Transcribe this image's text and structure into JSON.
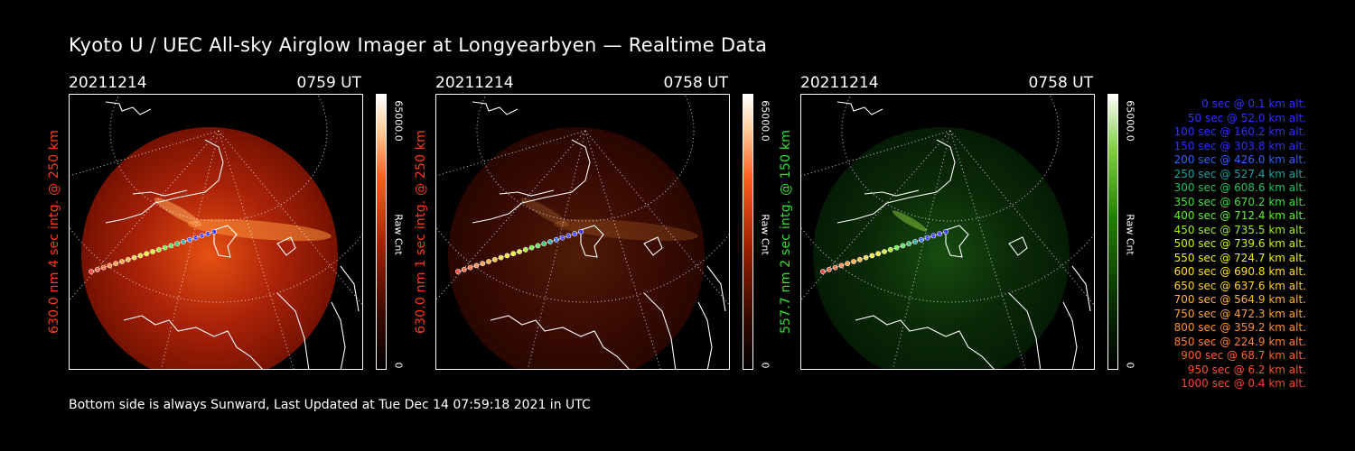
{
  "title": "Kyoto U / UEC All-sky Airglow Imager at Longyearbyen — Realtime Data",
  "footer": "Bottom side is always Sunward, Last Updated at Tue Dec 14 07:59:18 2021 in UTC",
  "panels": [
    {
      "date": "20211214",
      "time": "0759 UT",
      "ylabel": "630.0 nm 4 sec intg. @ 250 km",
      "label_color": "#ff3a1a",
      "glow": "red",
      "intensity": 1.0,
      "colorbar_max": "65000.0",
      "colorbar_label": "Raw Cnt",
      "colorbar_min": "0"
    },
    {
      "date": "20211214",
      "time": "0758 UT",
      "ylabel": "630.0 nm 1 sec intg. @ 250 km",
      "label_color": "#ff3a1a",
      "glow": "red",
      "intensity": 0.35,
      "colorbar_max": "65000.0",
      "colorbar_label": "Raw Cnt",
      "colorbar_min": "0"
    },
    {
      "date": "20211214",
      "time": "0758 UT",
      "ylabel": "557.7 nm 2 sec intg. @ 150 km",
      "label_color": "#30e030",
      "glow": "green",
      "intensity": 0.55,
      "colorbar_max": "65000.0",
      "colorbar_label": "Raw Cnt",
      "colorbar_min": "0"
    }
  ],
  "legend": [
    {
      "text": "0 sec @   0.1 km alt.",
      "color": "#3030ff"
    },
    {
      "text": "50 sec @  52.0 km alt.",
      "color": "#3030ff"
    },
    {
      "text": "100 sec @ 160.2 km alt.",
      "color": "#3030ff"
    },
    {
      "text": "150 sec @ 303.8 km alt.",
      "color": "#3030ff"
    },
    {
      "text": "200 sec @ 426.0 km alt.",
      "color": "#3060ff"
    },
    {
      "text": "250 sec @ 527.4 km alt.",
      "color": "#20a0a0"
    },
    {
      "text": "300 sec @ 608.6 km alt.",
      "color": "#20c060"
    },
    {
      "text": "350 sec @ 670.2 km alt.",
      "color": "#40e040"
    },
    {
      "text": "400 sec @ 712.4 km alt.",
      "color": "#60f030"
    },
    {
      "text": "450 sec @ 735.5 km alt.",
      "color": "#a0f020"
    },
    {
      "text": "500 sec @ 739.6 km alt.",
      "color": "#d0f020"
    },
    {
      "text": "550 sec @ 724.7 km alt.",
      "color": "#f0f020"
    },
    {
      "text": "600 sec @ 690.8 km alt.",
      "color": "#ffe020"
    },
    {
      "text": "650 sec @ 637.6 km alt.",
      "color": "#ffd030"
    },
    {
      "text": "700 sec @ 564.9 km alt.",
      "color": "#ffb030"
    },
    {
      "text": "750 sec @ 472.3 km alt.",
      "color": "#ffa030"
    },
    {
      "text": "800 sec @ 359.2 km alt.",
      "color": "#ff9030"
    },
    {
      "text": "850 sec @ 224.9 km alt.",
      "color": "#ff8030"
    },
    {
      "text": "900 sec @  68.7 km alt.",
      "color": "#ff6030"
    },
    {
      "text": "950 sec @   6.2 km alt.",
      "color": "#ff5030"
    },
    {
      "text": "1000 sec @   0.4 km alt.",
      "color": "#ff4030"
    }
  ]
}
